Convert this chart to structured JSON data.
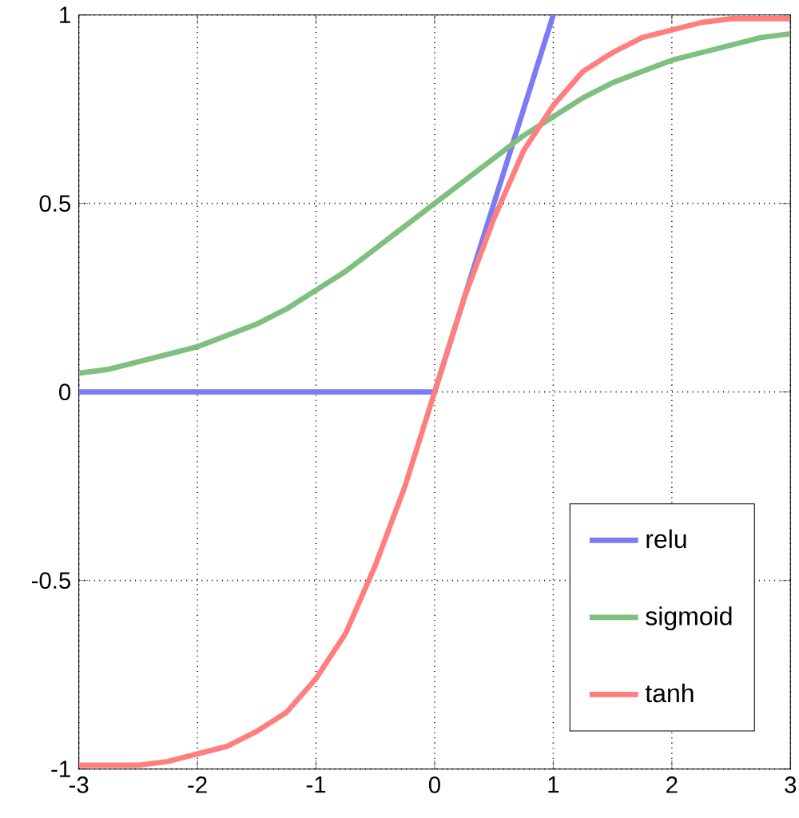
{
  "chart_data": {
    "type": "line",
    "series": [
      {
        "name": "relu",
        "color": "#7b7bf5",
        "x": [
          -3,
          0,
          1
        ],
        "values": [
          0,
          0,
          1
        ]
      },
      {
        "name": "sigmoid",
        "color": "#7fbf7f",
        "x": [
          -3,
          -2.75,
          -2.5,
          -2.25,
          -2,
          -1.75,
          -1.5,
          -1.25,
          -1,
          -0.75,
          -0.5,
          -0.25,
          0,
          0.25,
          0.5,
          0.75,
          1,
          1.25,
          1.5,
          1.75,
          2,
          2.25,
          2.5,
          2.75,
          3
        ],
        "values": [
          0.05,
          0.06,
          0.08,
          0.1,
          0.12,
          0.15,
          0.18,
          0.22,
          0.27,
          0.32,
          0.38,
          0.44,
          0.5,
          0.56,
          0.62,
          0.68,
          0.73,
          0.78,
          0.82,
          0.85,
          0.88,
          0.9,
          0.92,
          0.94,
          0.95
        ]
      },
      {
        "name": "tanh",
        "color": "#ff7f7f",
        "x": [
          -3,
          -2.75,
          -2.5,
          -2.25,
          -2,
          -1.75,
          -1.5,
          -1.25,
          -1,
          -0.75,
          -0.5,
          -0.25,
          0,
          0.25,
          0.5,
          0.75,
          1,
          1.25,
          1.5,
          1.75,
          2,
          2.25,
          2.5,
          2.75,
          3
        ],
        "values": [
          -0.99,
          -0.99,
          -0.99,
          -0.98,
          -0.96,
          -0.94,
          -0.9,
          -0.85,
          -0.76,
          -0.64,
          -0.46,
          -0.25,
          0,
          0.25,
          0.46,
          0.64,
          0.76,
          0.85,
          0.9,
          0.94,
          0.96,
          0.98,
          0.99,
          0.99,
          0.99
        ]
      }
    ],
    "xlim": [
      -3,
      3
    ],
    "ylim": [
      -1,
      1
    ],
    "xticks": [
      -3,
      -2,
      -1,
      0,
      1,
      2,
      3
    ],
    "yticks": [
      -1,
      -0.5,
      0,
      0.5,
      1
    ],
    "grid": true,
    "legend": "bottom right",
    "line_style": "solid"
  }
}
